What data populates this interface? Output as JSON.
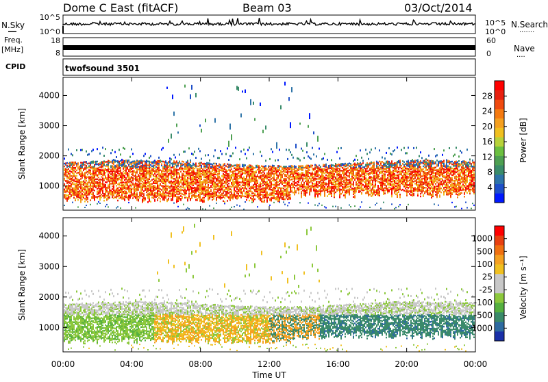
{
  "header": {
    "station": "Dome C East (fitACF)",
    "beam": "Beam 03",
    "date": "03/Oct/2014"
  },
  "left_labels": {
    "nsky": "N.Sky",
    "freq_line1": "Freq.",
    "freq_line2": "[MHz]",
    "cpid": "CPID"
  },
  "right_labels": {
    "nsearch": "N.Search",
    "nsearch_dots": "·······",
    "nave": "Nave",
    "nave_dots": "····"
  },
  "noise_axis": {
    "left_ticks": [
      "10^5",
      "10^0"
    ],
    "right_ticks": [
      "10^5",
      "10^0"
    ]
  },
  "freq_axis": {
    "left_ticks": [
      "18",
      "8"
    ],
    "right_ticks": [
      "60",
      "0"
    ]
  },
  "cpid_label": "twofsound 3501",
  "chart_data": [
    {
      "type": "heatmap",
      "name_hint": "power",
      "ylabel": "Slant Range [km]",
      "yticks": [
        "1000",
        "2000",
        "3000",
        "4000"
      ],
      "ylim": [
        200,
        4600
      ],
      "colorbar": {
        "label": "Power [dB]",
        "ticks": [
          "4",
          "8",
          "12",
          "16",
          "20",
          "24",
          "28"
        ],
        "colors": [
          "#0018ff",
          "#1e4fc8",
          "#2e74a8",
          "#3a8c6a",
          "#4ea052",
          "#6cc040",
          "#b8d23a",
          "#f0c020",
          "#f5a020",
          "#f57a10",
          "#f04a10",
          "#e82010",
          "#ff0000"
        ]
      }
    },
    {
      "type": "heatmap",
      "name_hint": "velocity",
      "ylabel": "Slant Range [km]",
      "yticks": [
        "1000",
        "2000",
        "3000",
        "4000"
      ],
      "ylim": [
        200,
        4600
      ],
      "colorbar": {
        "label": "Velocity [m s⁻¹]",
        "ticks": [
          "1000",
          "500",
          "100",
          "25",
          "-25",
          "-100",
          "-500",
          "-1000"
        ],
        "colors": [
          "#1a2fa8",
          "#2d6aa0",
          "#3a8a6a",
          "#55b040",
          "#8cc83c",
          "#c8c8c8",
          "#c8c8c8",
          "#f0c020",
          "#f5a020",
          "#f07010",
          "#e84010",
          "#ff0000"
        ]
      }
    }
  ],
  "x_axis": {
    "label": "Time UT",
    "ticks": [
      "00:00",
      "04:00",
      "08:00",
      "12:00",
      "16:00",
      "20:00",
      "00:00"
    ]
  }
}
